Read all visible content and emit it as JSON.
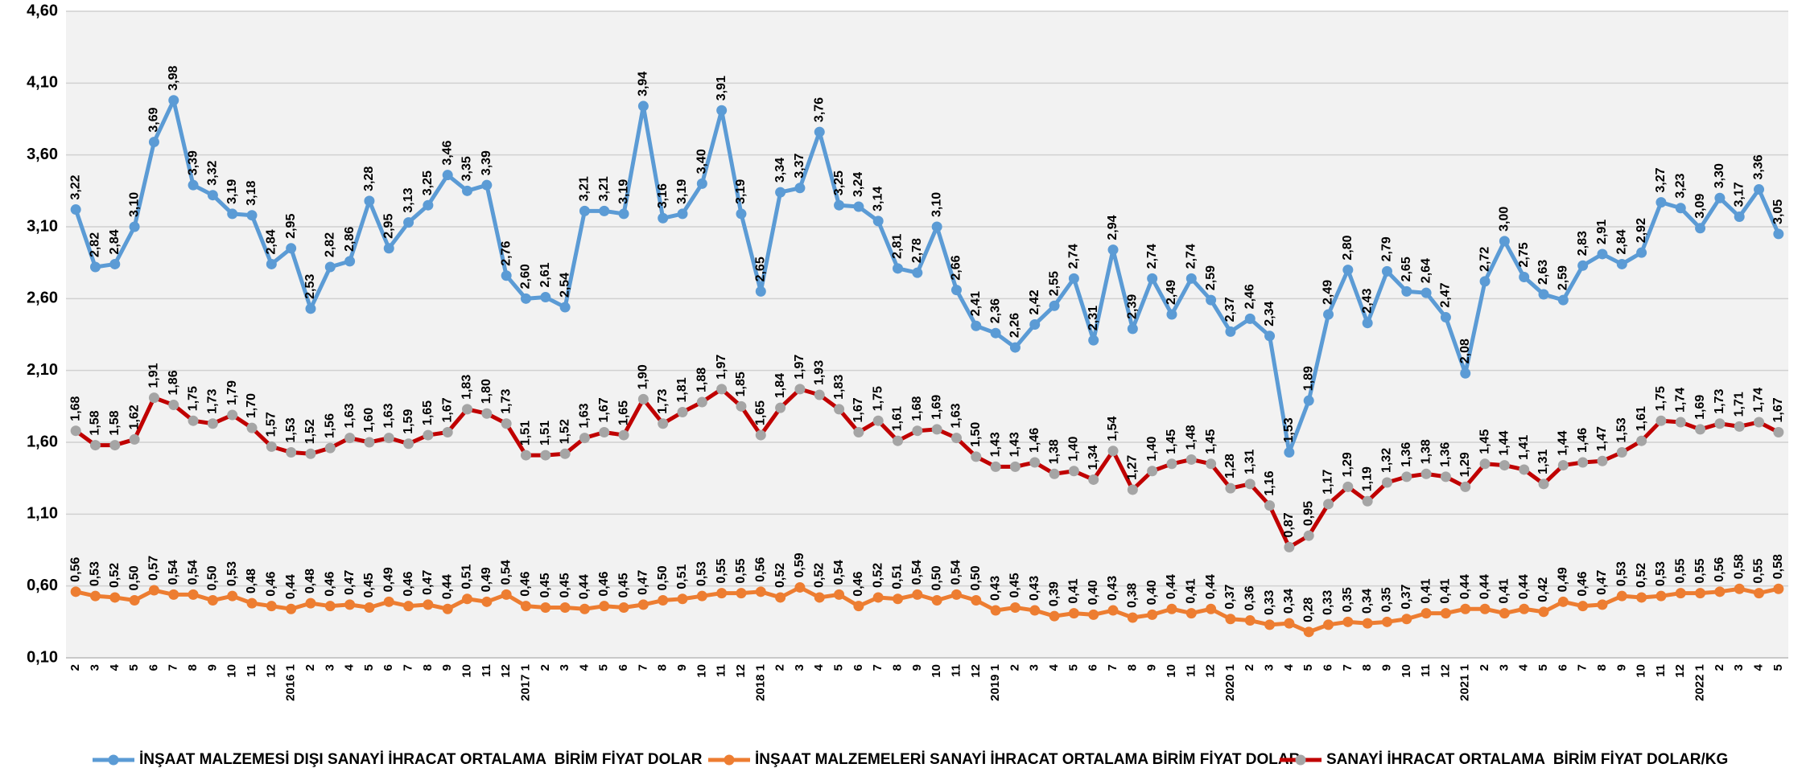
{
  "chart_data": {
    "type": "line",
    "categories": [
      "2",
      "3",
      "4",
      "5",
      "6",
      "7",
      "8",
      "9",
      "10",
      "11",
      "12",
      "2016 1",
      "2",
      "3",
      "4",
      "5",
      "6",
      "7",
      "8",
      "9",
      "10",
      "11",
      "12",
      "2017 1",
      "2",
      "3",
      "4",
      "5",
      "6",
      "7",
      "8",
      "9",
      "10",
      "11",
      "12",
      "2018 1",
      "2",
      "3",
      "4",
      "5",
      "6",
      "7",
      "8",
      "9",
      "10",
      "11",
      "12",
      "2019 1",
      "2",
      "3",
      "4",
      "5",
      "6",
      "7",
      "8",
      "9",
      "10",
      "11",
      "12",
      "2020 1",
      "2",
      "3",
      "4",
      "5",
      "6",
      "7",
      "8",
      "9",
      "10",
      "11",
      "12",
      "2021 1",
      "2",
      "3",
      "4",
      "5",
      "6",
      "7",
      "8",
      "9",
      "10",
      "11",
      "12",
      "2022 1",
      "2",
      "3",
      "4",
      "5"
    ],
    "series": [
      {
        "name": "İNŞAAT MALZEMESİ DIŞI SANAYİ İHRACAT ORTALAMA  BİRİM FİYAT DOLAR",
        "color": "#5b9bd5",
        "marker_color": "#5b9bd5",
        "values": [
          3.22,
          2.82,
          2.84,
          3.1,
          3.69,
          3.98,
          3.39,
          3.32,
          3.19,
          3.18,
          2.84,
          2.95,
          2.53,
          2.82,
          2.86,
          3.28,
          2.95,
          3.13,
          3.25,
          3.46,
          3.35,
          3.39,
          2.76,
          2.6,
          2.61,
          2.54,
          3.21,
          3.21,
          3.19,
          3.94,
          3.16,
          3.19,
          3.4,
          3.91,
          3.19,
          2.65,
          3.34,
          3.37,
          3.76,
          3.25,
          3.24,
          3.14,
          2.81,
          2.78,
          3.1,
          2.66,
          2.41,
          2.36,
          2.26,
          2.42,
          2.55,
          2.74,
          2.31,
          2.94,
          2.39,
          2.74,
          2.49,
          2.74,
          2.59,
          2.37,
          2.46,
          2.34,
          1.53,
          1.89,
          2.49,
          2.8,
          2.43,
          2.79,
          2.65,
          2.64,
          2.47,
          2.08,
          2.72,
          3.0,
          2.75,
          2.63,
          2.59,
          2.83,
          2.91,
          2.84,
          2.92,
          3.27,
          3.23,
          3.09,
          3.3,
          3.17,
          3.36,
          3.05
        ],
        "value_labels": [
          "3,22",
          "2,82",
          "2,84",
          "3,10",
          "3,69",
          "3,98",
          "3,39",
          "3,32",
          "3,19",
          "3,18",
          "2,84",
          "2,95",
          "2,53",
          "2,82",
          "2,86",
          "3,28",
          "2,95",
          "3,13",
          "3,25",
          "3,46",
          "3,35",
          "3,39",
          "2,76",
          "2,60",
          "2,61",
          "2,54",
          "3,21",
          "3,21",
          "3,19",
          "3,94",
          "3,16",
          "3,19",
          "3,40",
          "3,91",
          "3,19",
          "2,65",
          "3,34",
          "3,37",
          "3,76",
          "3,25",
          "3,24",
          "3,14",
          "2,81",
          "2,78",
          "3,10",
          "2,66",
          "2,41",
          "2,36",
          "2,26",
          "2,42",
          "2,55",
          "2,74",
          "2,31",
          "2,94",
          "2,39",
          "2,74",
          "2,49",
          "2,74",
          "2,59",
          "2,37",
          "2,46",
          "2,34",
          "1,53",
          "1,89",
          "2,49",
          "2,80",
          "2,43",
          "2,79",
          "2,65",
          "2,64",
          "2,47",
          "2,08",
          "2,72",
          "3,00",
          "2,75",
          "2,63",
          "2,59",
          "2,83",
          "2,91",
          "2,84",
          "2,92",
          "3,27",
          "3,23",
          "3,09",
          "3,30",
          "3,17",
          "3,36",
          "3,05"
        ]
      },
      {
        "name": "İNŞAAT MALZEMELERİ SANAYİ İHRACAT ORTALAMA BİRİM FİYAT DOLAR",
        "color": "#ed7d31",
        "marker_color": "#ed7d31",
        "values": [
          0.56,
          0.53,
          0.52,
          0.5,
          0.57,
          0.54,
          0.54,
          0.5,
          0.53,
          0.48,
          0.46,
          0.44,
          0.48,
          0.46,
          0.47,
          0.45,
          0.49,
          0.46,
          0.47,
          0.44,
          0.51,
          0.49,
          0.54,
          0.46,
          0.45,
          0.45,
          0.44,
          0.46,
          0.45,
          0.47,
          0.5,
          0.51,
          0.53,
          0.55,
          0.55,
          0.56,
          0.52,
          0.59,
          0.52,
          0.54,
          0.46,
          0.52,
          0.51,
          0.54,
          0.5,
          0.54,
          0.5,
          0.43,
          0.45,
          0.43,
          0.39,
          0.41,
          0.4,
          0.43,
          0.38,
          0.4,
          0.44,
          0.41,
          0.44,
          0.37,
          0.36,
          0.33,
          0.34,
          0.28,
          0.33,
          0.35,
          0.34,
          0.35,
          0.37,
          0.41,
          0.41,
          0.44,
          0.44,
          0.41,
          0.44,
          0.42,
          0.49,
          0.46,
          0.47,
          0.53,
          0.52,
          0.53,
          0.55,
          0.55,
          0.56,
          0.58,
          0.55,
          0.58
        ],
        "value_labels": [
          "0,56",
          "0,53",
          "0,52",
          "0,50",
          "0,57",
          "0,54",
          "0,54",
          "0,50",
          "0,53",
          "0,48",
          "0,46",
          "0,44",
          "0,48",
          "0,46",
          "0,47",
          "0,45",
          "0,49",
          "0,46",
          "0,47",
          "0,44",
          "0,51",
          "0,49",
          "0,54",
          "0,46",
          "0,45",
          "0,45",
          "0,44",
          "0,46",
          "0,45",
          "0,47",
          "0,50",
          "0,51",
          "0,53",
          "0,55",
          "0,55",
          "0,56",
          "0,52",
          "0,59",
          "0,52",
          "0,54",
          "0,46",
          "0,52",
          "0,51",
          "0,54",
          "0,50",
          "0,54",
          "0,50",
          "0,43",
          "0,45",
          "0,43",
          "0,39",
          "0,41",
          "0,40",
          "0,43",
          "0,38",
          "0,40",
          "0,44",
          "0,41",
          "0,44",
          "0,37",
          "0,36",
          "0,33",
          "0,34",
          "0,28",
          "0,33",
          "0,35",
          "0,34",
          "0,35",
          "0,37",
          "0,41",
          "0,41",
          "0,44",
          "0,44",
          "0,41",
          "0,44",
          "0,42",
          "0,49",
          "0,46",
          "0,47",
          "0,53",
          "0,52",
          "0,53",
          "0,55",
          "0,55",
          "0,56",
          "0,58",
          "0,55",
          "0,58"
        ]
      },
      {
        "name": "SANAYİ İHRACAT ORTALAMA  BİRİM FİYAT DOLAR/KG",
        "color": "#c00000",
        "marker_color": "#a5a5a5",
        "values": [
          1.68,
          1.58,
          1.58,
          1.62,
          1.91,
          1.86,
          1.75,
          1.73,
          1.79,
          1.7,
          1.57,
          1.53,
          1.52,
          1.56,
          1.63,
          1.6,
          1.63,
          1.59,
          1.65,
          1.67,
          1.83,
          1.8,
          1.73,
          1.51,
          1.51,
          1.52,
          1.63,
          1.67,
          1.65,
          1.9,
          1.73,
          1.81,
          1.88,
          1.97,
          1.85,
          1.65,
          1.84,
          1.97,
          1.93,
          1.83,
          1.67,
          1.75,
          1.61,
          1.68,
          1.69,
          1.63,
          1.5,
          1.43,
          1.43,
          1.46,
          1.38,
          1.4,
          1.34,
          1.54,
          1.27,
          1.4,
          1.45,
          1.48,
          1.45,
          1.28,
          1.31,
          1.16,
          0.87,
          0.95,
          1.17,
          1.29,
          1.19,
          1.32,
          1.36,
          1.38,
          1.36,
          1.29,
          1.45,
          1.44,
          1.41,
          1.31,
          1.44,
          1.46,
          1.47,
          1.53,
          1.61,
          1.75,
          1.74,
          1.69,
          1.73,
          1.71,
          1.74,
          1.67
        ],
        "value_labels": [
          "1,68",
          "1,58",
          "1,58",
          "1,62",
          "1,91",
          "1,86",
          "1,75",
          "1,73",
          "1,79",
          "1,70",
          "1,57",
          "1,53",
          "1,52",
          "1,56",
          "1,63",
          "1,60",
          "1,63",
          "1,59",
          "1,65",
          "1,67",
          "1,83",
          "1,80",
          "1,73",
          "1,51",
          "1,51",
          "1,52",
          "1,63",
          "1,67",
          "1,65",
          "1,90",
          "1,73",
          "1,81",
          "1,88",
          "1,97",
          "1,85",
          "1,65",
          "1,84",
          "1,97",
          "1,93",
          "1,83",
          "1,67",
          "1,75",
          "1,61",
          "1,68",
          "1,69",
          "1,63",
          "1,50",
          "1,43",
          "1,43",
          "1,46",
          "1,38",
          "1,40",
          "1,34",
          "1,54",
          "1,27",
          "1,40",
          "1,45",
          "1,48",
          "1,45",
          "1,28",
          "1,31",
          "1,16",
          "0,87",
          "0,95",
          "1,17",
          "1,29",
          "1,19",
          "1,32",
          "1,36",
          "1,38",
          "1,36",
          "1,29",
          "1,45",
          "1,44",
          "1,41",
          "1,31",
          "1,44",
          "1,46",
          "1,47",
          "1,53",
          "1,61",
          "1,75",
          "1,74",
          "1,69",
          "1,73",
          "1,71",
          "1,74",
          "1,67"
        ]
      }
    ],
    "ylim": [
      0.1,
      4.6
    ],
    "yticks": [
      {
        "value": 0.1,
        "label": "0,10"
      },
      {
        "value": 0.6,
        "label": "0,60"
      },
      {
        "value": 1.1,
        "label": "1,10"
      },
      {
        "value": 1.6,
        "label": "1,60"
      },
      {
        "value": 2.1,
        "label": "2,10"
      },
      {
        "value": 2.6,
        "label": "2,60"
      },
      {
        "value": 3.1,
        "label": "3,10"
      },
      {
        "value": 3.6,
        "label": "3,60"
      },
      {
        "value": 4.1,
        "label": "4,10"
      },
      {
        "value": 4.6,
        "label": "4,60"
      }
    ],
    "grid": true,
    "legend": "bottom"
  }
}
